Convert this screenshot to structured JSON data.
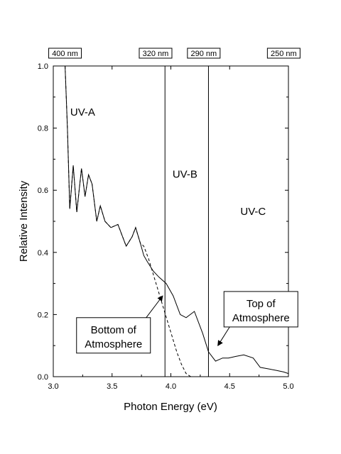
{
  "chart_data": {
    "type": "line",
    "title": "",
    "xlabel": "Photon Energy (eV)",
    "ylabel": "Relative Intensity",
    "xlim": [
      3.0,
      5.0
    ],
    "ylim": [
      0.0,
      1.0
    ],
    "xticks": [
      3.0,
      3.5,
      4.0,
      4.5,
      5.0
    ],
    "xtick_labels": [
      "3.0",
      "3.5",
      "4.0",
      "4.5",
      "5.0"
    ],
    "yticks": [
      0.0,
      0.2,
      0.4,
      0.6,
      0.8,
      1.0
    ],
    "ytick_labels": [
      "0.0",
      "0.2",
      "0.4",
      "0.6",
      "0.8",
      "1.0"
    ],
    "grid": false,
    "series": [
      {
        "style": "solid",
        "color": "#000000",
        "x": [
          3.1,
          3.12,
          3.14,
          3.17,
          3.2,
          3.24,
          3.27,
          3.3,
          3.33,
          3.37,
          3.4,
          3.44,
          3.49,
          3.55,
          3.62,
          3.67,
          3.7,
          3.74,
          3.77,
          3.8,
          3.85,
          3.9,
          3.96,
          4.02,
          4.08,
          4.13,
          4.2,
          4.27,
          4.32,
          4.38,
          4.44,
          4.49,
          4.55,
          4.62,
          4.7,
          4.76,
          4.83,
          4.9,
          4.96,
          5.0
        ],
        "y": [
          1.0,
          0.8,
          0.54,
          0.68,
          0.53,
          0.67,
          0.58,
          0.65,
          0.62,
          0.5,
          0.55,
          0.5,
          0.48,
          0.49,
          0.42,
          0.45,
          0.48,
          0.43,
          0.39,
          0.37,
          0.34,
          0.32,
          0.3,
          0.26,
          0.2,
          0.19,
          0.21,
          0.14,
          0.08,
          0.05,
          0.06,
          0.06,
          0.065,
          0.07,
          0.06,
          0.03,
          0.025,
          0.02,
          0.015,
          0.01
        ]
      },
      {
        "style": "dashed",
        "color": "#000000",
        "x": [
          3.1,
          3.12,
          3.14,
          3.17,
          3.2,
          3.24,
          3.27,
          3.3,
          3.33,
          3.37,
          3.4,
          3.44,
          3.49,
          3.55,
          3.62,
          3.67,
          3.7,
          3.74,
          3.77,
          3.81,
          3.85,
          3.89,
          3.93,
          3.97,
          4.01,
          4.05,
          4.09,
          4.13,
          4.17,
          4.2
        ],
        "y": [
          1.0,
          0.8,
          0.54,
          0.68,
          0.53,
          0.67,
          0.58,
          0.65,
          0.62,
          0.5,
          0.55,
          0.5,
          0.48,
          0.49,
          0.42,
          0.45,
          0.48,
          0.43,
          0.42,
          0.38,
          0.33,
          0.28,
          0.23,
          0.18,
          0.13,
          0.08,
          0.04,
          0.01,
          0.0,
          0.0
        ]
      }
    ],
    "vlines": [
      3.95,
      4.32
    ],
    "top_labels": [
      {
        "text": "400 nm",
        "x": 3.1
      },
      {
        "text": "320 nm",
        "x": 3.87
      },
      {
        "text": "290 nm",
        "x": 4.28
      },
      {
        "text": "250 nm",
        "x": 4.96
      }
    ],
    "region_labels": [
      {
        "text": "UV-A",
        "x": 3.25,
        "y": 0.84
      },
      {
        "text": "UV-B",
        "x": 4.12,
        "y": 0.64
      },
      {
        "text": "UV-C",
        "x": 4.7,
        "y": 0.52
      }
    ],
    "annotations": [
      {
        "lines": [
          "Bottom of",
          "Atmosphere"
        ],
        "arrow_to": [
          3.93,
          0.26
        ],
        "arrow_from": [
          3.79,
          0.19
        ]
      },
      {
        "lines": [
          "Top of",
          "Atmosphere"
        ],
        "arrow_to": [
          4.4,
          0.1
        ],
        "arrow_from": [
          4.5,
          0.16
        ]
      }
    ]
  }
}
